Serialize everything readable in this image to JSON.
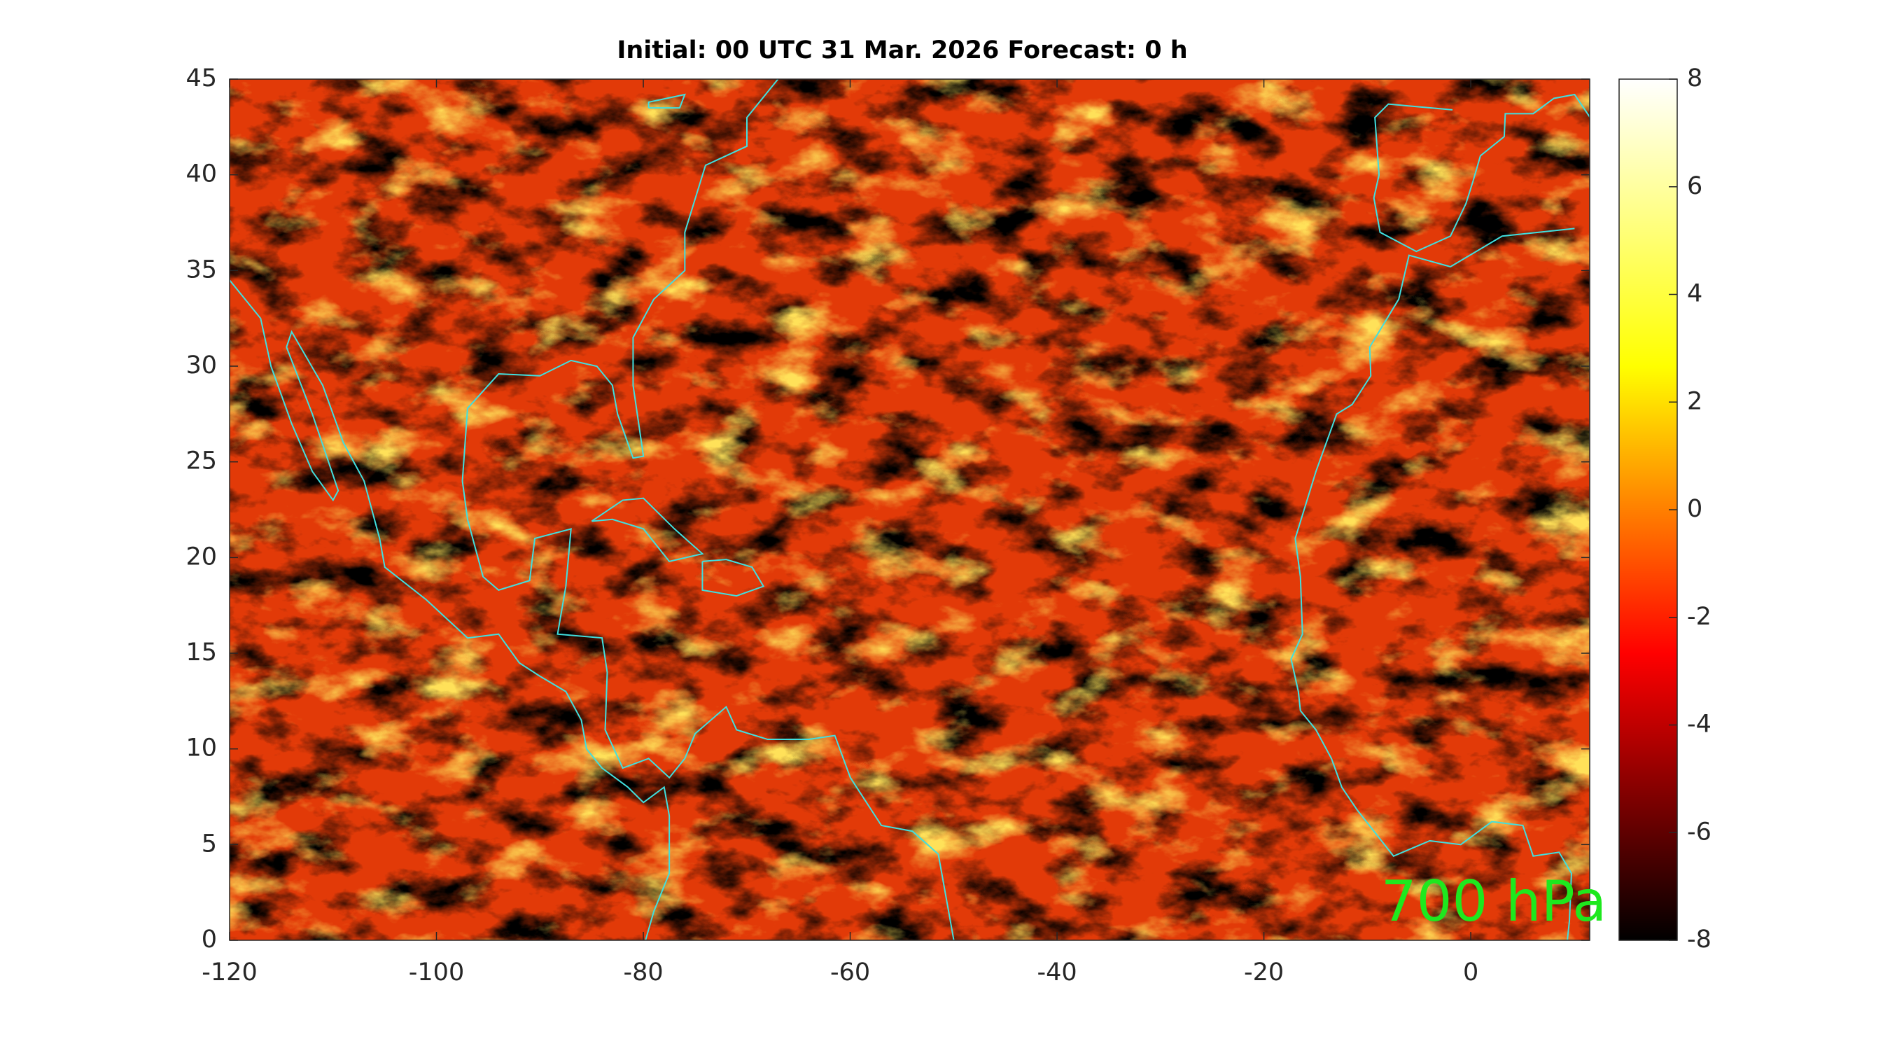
{
  "chart_data": {
    "type": "map",
    "title": "Initial: 00 UTC 31 Mar. 2026 Forecast: 0 h",
    "annotation": "700 hPa",
    "annotation_color": "#1ee81e",
    "xlim": [
      -120,
      11.5
    ],
    "xticks": [
      -120,
      -100,
      -80,
      -60,
      -40,
      -20,
      0
    ],
    "ylim": [
      0,
      45
    ],
    "yticks": [
      0,
      5,
      10,
      15,
      20,
      25,
      30,
      35,
      40,
      45
    ],
    "colorbar": {
      "clim": [
        -8,
        8
      ],
      "ticks": [
        -8,
        -6,
        -4,
        -2,
        0,
        2,
        4,
        6,
        8
      ],
      "colormap": [
        "#000000",
        "#ff0000",
        "#ffff00",
        "#ffffff"
      ]
    },
    "coast_color": "#40e0e0"
  }
}
